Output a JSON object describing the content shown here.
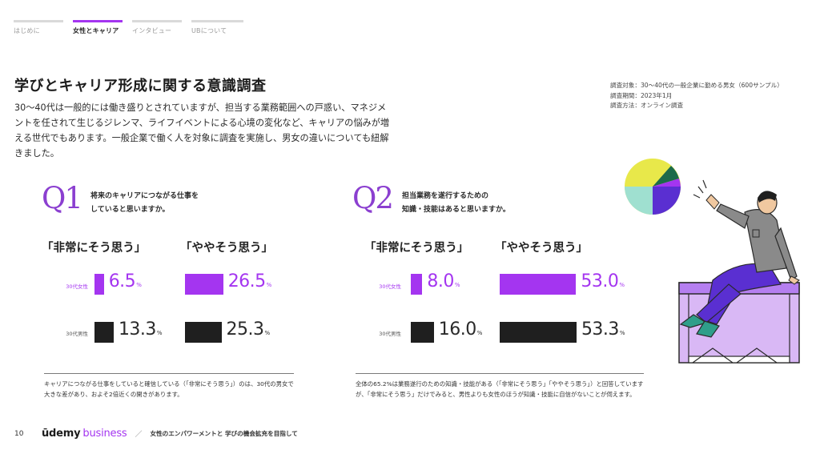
{
  "nav": {
    "tabs": [
      {
        "label": "はじめに",
        "active": false
      },
      {
        "label": "女性とキャリア",
        "active": true
      },
      {
        "label": "インタビュー",
        "active": false
      },
      {
        "label": "UBについて",
        "active": false
      }
    ]
  },
  "title": "学びとキャリア形成に関する意識調査",
  "intro": "30〜40代は一般的には働き盛りとされていますが、担当する業務範囲への戸惑い、マネジメントを任されて生じるジレンマ、ライフイベントによる心境の変化など、キャリアの悩みが増える世代でもあります。一般企業で働く人を対象に調査を実施し、男女の違いについても紐解きました。",
  "survey_meta": {
    "target": "調査対象：30〜40代の一般企業に勤める男女（600サンプル）",
    "period": "調査期間：2023年1月",
    "method": "調査方法：オンライン調査"
  },
  "questions": [
    {
      "number": "Q1",
      "text_line1": "将来のキャリアにつながる仕事を",
      "text_line2": "していると思いますか。",
      "col1": "「非常にそう思う」",
      "col2": "「ややそう思う」",
      "female_label": "30代女性",
      "male_label": "30代男性",
      "female": {
        "strong": "6.5",
        "somewhat": "26.5"
      },
      "male": {
        "strong": "13.3",
        "somewhat": "25.3"
      },
      "note": "キャリアにつながる仕事をしていると確信している（「非常にそう思う」）のは、30代の男女で大きな差があり、およそ2倍近くの開きがあります。"
    },
    {
      "number": "Q2",
      "text_line1": "担当業務を遂行するための",
      "text_line2": "知識・技能はあると思いますか。",
      "col1": "「非常にそう思う」",
      "col2": "「ややそう思う」",
      "female_label": "30代女性",
      "male_label": "30代男性",
      "female": {
        "strong": "8.0",
        "somewhat": "53.0"
      },
      "male": {
        "strong": "16.0",
        "somewhat": "53.3"
      },
      "note": "全体の65.2%は業務遂行のための知識・技能がある（「非常にそう思う」「ややそう思う」）と回答していますが、「非常にそう思う」だけでみると、男性よりも女性のほうが知識・技能に自信がないことが伺えます。"
    }
  ],
  "unit": "%",
  "footer": {
    "page": "10",
    "logo_main": "ūdemy",
    "logo_sub": "business",
    "separator": "／",
    "text": "女性のエンパワーメントと 学びの機会拡充を目指して"
  },
  "colors": {
    "accent": "#a435f0",
    "dark": "#1f1f1f"
  }
}
